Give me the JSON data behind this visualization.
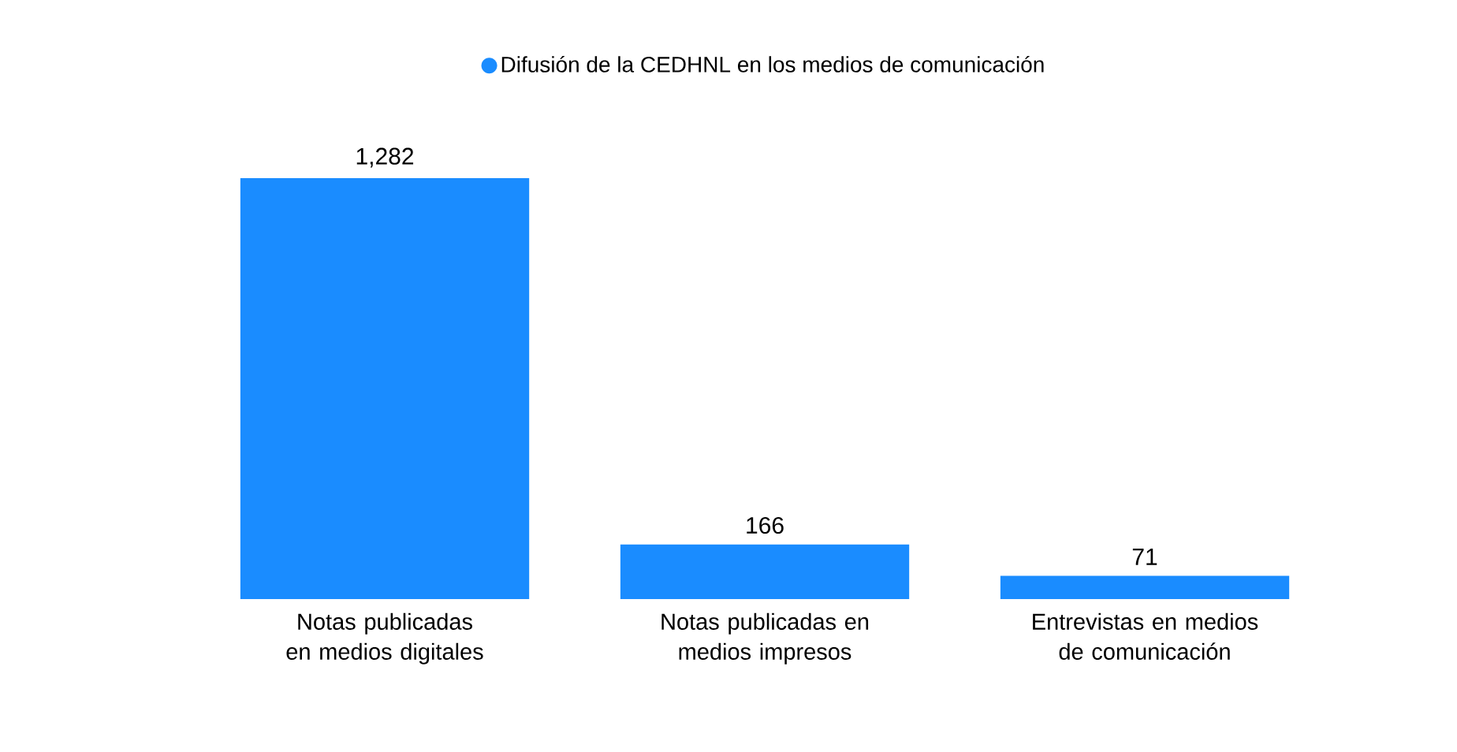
{
  "chart_data": {
    "type": "bar",
    "categories": [
      "Notas publicadas en medios digitales",
      "Notas publicadas en medios impresos",
      "Entrevistas en medios de comunicación"
    ],
    "series": [
      {
        "name": "Difusión de la CEDHNL en los medios de comunicación",
        "color": "#1a8cff",
        "values": [
          1282,
          166,
          71
        ],
        "value_labels": [
          "1,282",
          "166",
          "71"
        ]
      }
    ],
    "legend": "top"
  }
}
